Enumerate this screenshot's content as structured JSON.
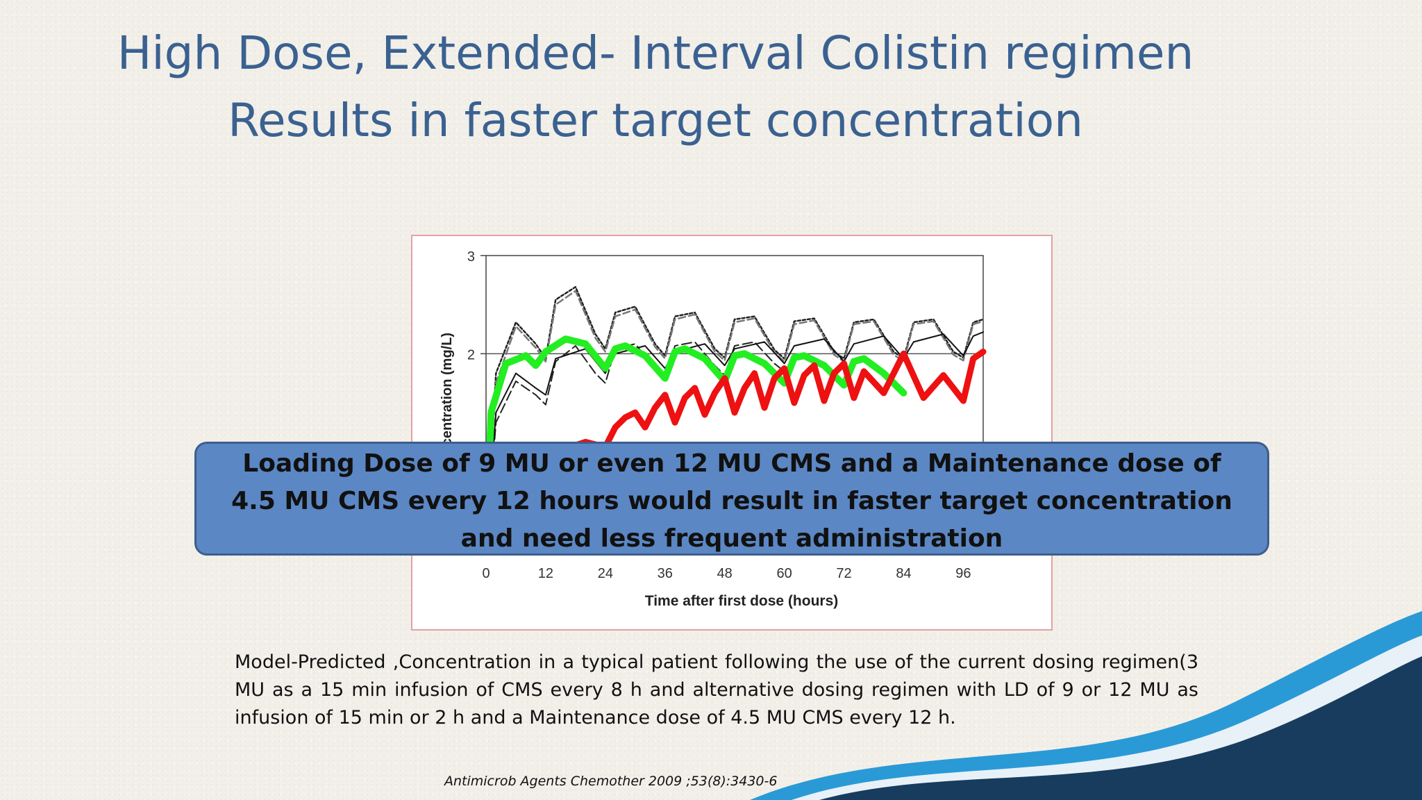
{
  "slide": {
    "title_line1": "High Dose, Extended- Interval Colistin regimen",
    "title_line2": "Results in faster target concentration",
    "callout": "Loading Dose of 9 MU or even 12 MU CMS and a Maintenance dose of 4.5 MU CMS every 12 hours would result in faster target concentration and need less frequent administration",
    "caption": "Model-Predicted ,Concentration in a typical patient following the use of the current dosing regimen(3 MU as a 15 min infusion of CMS every 8 h and alternative dosing regimen with LD of 9 or 12 MU as infusion of 15 min or 2 h and a Maintenance dose of 4.5 MU CMS every 12 h.",
    "citation": "Antimicrob Agents Chemother 2009 ;53(8):3430-6",
    "colors": {
      "title": "#3a6190",
      "callout_fill": "#5b87c4",
      "green_series": "#22ee22",
      "red_series": "#ee1111",
      "wave_dark": "#173c5e",
      "wave_light": "#2a9ad6"
    }
  },
  "chart_data": {
    "type": "line",
    "xlabel": "Time after first dose (hours)",
    "ylabel": "Concentration (mg/L)",
    "xlim": [
      0,
      100
    ],
    "ylim": [
      0,
      3
    ],
    "x_ticks": [
      0,
      12,
      24,
      36,
      48,
      60,
      72,
      84,
      96
    ],
    "y_ticks": [
      2,
      3
    ],
    "target_line": 2,
    "series": [
      {
        "color": "#222222",
        "dash": "4,3",
        "width": 2.5,
        "x": [
          0,
          2,
          6,
          10,
          12,
          14,
          18,
          22,
          24,
          26,
          30,
          34,
          36,
          38,
          42,
          46,
          48,
          50,
          54,
          58,
          60,
          62,
          66,
          70,
          72,
          74,
          78,
          82,
          84,
          86,
          90,
          94,
          96,
          98,
          100
        ],
        "y": [
          0,
          1.8,
          2.32,
          2.1,
          1.95,
          2.55,
          2.68,
          2.2,
          2.05,
          2.42,
          2.48,
          2.1,
          1.98,
          2.38,
          2.42,
          2.05,
          1.96,
          2.35,
          2.38,
          2.04,
          1.95,
          2.33,
          2.36,
          2.02,
          1.95,
          2.32,
          2.35,
          2.02,
          1.95,
          2.32,
          2.35,
          2.02,
          1.96,
          2.32,
          2.35
        ]
      },
      {
        "color": "#777777",
        "dash": "10,5",
        "width": 2.5,
        "x": [
          0,
          2,
          6,
          10,
          12,
          14,
          18,
          22,
          24,
          26,
          30,
          34,
          36,
          38,
          42,
          46,
          48,
          50,
          54,
          58,
          60,
          62,
          66,
          70,
          72,
          74,
          78,
          82,
          84,
          86,
          90,
          94,
          96,
          98,
          100
        ],
        "y": [
          0,
          1.7,
          2.28,
          2.06,
          1.92,
          2.5,
          2.64,
          2.16,
          2.02,
          2.38,
          2.45,
          2.07,
          1.95,
          2.35,
          2.4,
          2.02,
          1.93,
          2.32,
          2.36,
          2.01,
          1.92,
          2.3,
          2.34,
          1.99,
          1.92,
          2.3,
          2.33,
          1.99,
          1.92,
          2.3,
          2.33,
          1.99,
          1.93,
          2.3,
          2.33
        ]
      },
      {
        "color": "#222222",
        "dash": "14,6",
        "width": 2,
        "x": [
          0,
          2,
          6,
          10,
          12,
          14,
          18,
          22,
          24,
          26,
          30,
          34,
          36,
          38,
          42,
          46,
          48,
          50,
          54,
          58,
          60
        ],
        "y": [
          0,
          1.3,
          1.72,
          1.58,
          1.48,
          1.92,
          2.08,
          1.8,
          1.7,
          2.05,
          2.1,
          1.85,
          1.75,
          2.08,
          2.12,
          1.88,
          1.78,
          2.08,
          2.12,
          1.9,
          1.82
        ]
      },
      {
        "color": "#111111",
        "dash": "",
        "width": 2,
        "x": [
          0,
          2,
          6,
          10,
          12,
          14,
          20,
          24,
          26,
          32,
          36,
          38,
          44,
          48,
          50,
          56,
          60,
          62,
          68,
          72,
          74,
          80,
          84,
          86,
          92,
          96,
          98,
          100
        ],
        "y": [
          0,
          1.4,
          1.8,
          1.65,
          1.58,
          1.95,
          2.05,
          1.8,
          2.0,
          2.08,
          1.85,
          2.02,
          2.1,
          1.88,
          2.05,
          2.12,
          1.9,
          2.08,
          2.15,
          1.92,
          2.1,
          2.18,
          1.95,
          2.12,
          2.2,
          1.98,
          2.18,
          2.22
        ]
      },
      {
        "color": "#22ee22",
        "dash": "",
        "width": 10,
        "x": [
          0,
          1,
          4,
          8,
          10,
          12,
          16,
          20,
          24,
          26,
          28,
          32,
          36,
          38,
          40,
          44,
          48,
          50,
          52,
          56,
          60,
          62,
          64,
          68,
          72,
          74,
          76,
          80,
          84
        ],
        "y": [
          0,
          1.4,
          1.9,
          1.98,
          1.88,
          2.02,
          2.15,
          2.1,
          1.85,
          2.05,
          2.08,
          1.98,
          1.75,
          2.02,
          2.05,
          1.95,
          1.72,
          1.98,
          2.0,
          1.9,
          1.7,
          1.96,
          1.98,
          1.88,
          1.68,
          1.92,
          1.95,
          1.8,
          1.6
        ]
      },
      {
        "color": "#ee1111",
        "dash": "",
        "width": 9,
        "x": [
          17,
          20,
          24,
          26,
          28,
          30,
          32,
          34,
          36,
          38,
          40,
          42,
          44,
          46,
          48,
          50,
          52,
          54,
          56,
          58,
          60,
          62,
          64,
          66,
          68,
          70,
          72,
          74,
          76,
          80,
          84,
          88,
          92,
          96,
          98,
          100
        ],
        "y": [
          1.05,
          1.1,
          1.05,
          1.25,
          1.35,
          1.4,
          1.25,
          1.45,
          1.58,
          1.3,
          1.55,
          1.65,
          1.38,
          1.6,
          1.75,
          1.4,
          1.65,
          1.8,
          1.45,
          1.75,
          1.85,
          1.5,
          1.78,
          1.88,
          1.52,
          1.8,
          1.9,
          1.55,
          1.82,
          1.6,
          2.0,
          1.55,
          1.78,
          1.52,
          1.95,
          2.02
        ]
      }
    ]
  }
}
